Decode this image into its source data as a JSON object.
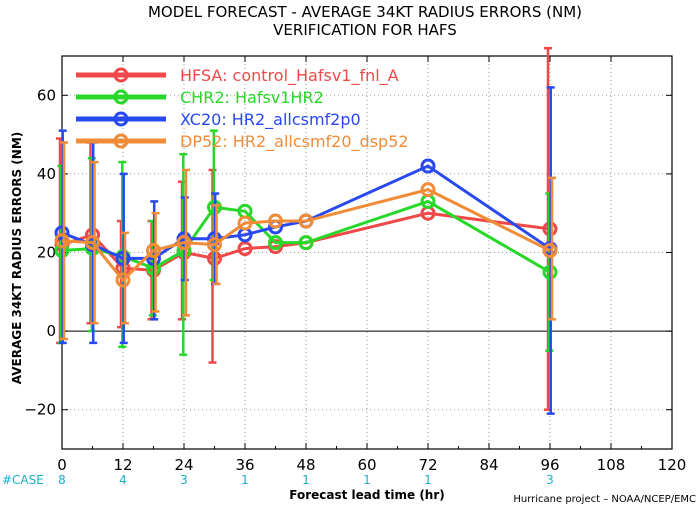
{
  "chart_data": {
    "type": "line",
    "title": "MODEL FORECAST - AVERAGE 34KT RADIUS ERRORS (NM)",
    "subtitle": "VERIFICATION FOR HAFS",
    "xlabel": "Forecast lead time (hr)",
    "ylabel": "AVERAGE 34KT RADIUS ERRORS (NM)",
    "xlim": [
      0,
      120
    ],
    "ylim": [
      -30,
      70
    ],
    "x_ticks": [
      0,
      12,
      24,
      36,
      48,
      60,
      72,
      84,
      96,
      108,
      120
    ],
    "y_ticks": [
      -20,
      0,
      20,
      40,
      60
    ],
    "grid": true,
    "legend_position": "top-left",
    "zero_line": true,
    "case_label": "#CASE",
    "case_counts": [
      {
        "x": 0,
        "n": "8"
      },
      {
        "x": 12,
        "n": "4"
      },
      {
        "x": 24,
        "n": "3"
      },
      {
        "x": 36,
        "n": "1"
      },
      {
        "x": 48,
        "n": "1"
      },
      {
        "x": 60,
        "n": "1"
      },
      {
        "x": 72,
        "n": "1"
      },
      {
        "x": 96,
        "n": "3"
      }
    ],
    "credit": "Hurricane project – NOAA/NCEP/EMC",
    "series": [
      {
        "id": "HFSA",
        "label": "HFSA: control_Hafsv1_fnl_A",
        "color": "#f04848",
        "x": [
          0,
          6,
          12,
          18,
          24,
          30,
          36,
          42,
          48,
          72,
          96
        ],
        "y": [
          22,
          24.5,
          16,
          15.5,
          20,
          18.5,
          21,
          21.5,
          22.5,
          30,
          26
        ],
        "err_low": [
          -3,
          2,
          1,
          3,
          3,
          -8,
          null,
          null,
          null,
          null,
          -20
        ],
        "err_high": [
          49,
          48,
          28,
          28,
          38,
          41,
          null,
          null,
          null,
          null,
          72
        ]
      },
      {
        "id": "CHR2",
        "label": "CHR2: Hafsv1HR2",
        "color": "#28d828",
        "x": [
          0,
          6,
          12,
          18,
          24,
          30,
          36,
          42,
          48,
          72,
          96
        ],
        "y": [
          20.5,
          21,
          19,
          16,
          20.5,
          31.5,
          30.5,
          22.5,
          22.5,
          33,
          15
        ],
        "err_low": [
          -3,
          0,
          -4,
          4,
          -6,
          13,
          null,
          null,
          null,
          null,
          -5
        ],
        "err_high": [
          42,
          44,
          43,
          28,
          45,
          51,
          null,
          null,
          null,
          null,
          35
        ]
      },
      {
        "id": "XC20",
        "label": "XC20: HR2_allcsmf2p0",
        "color": "#2848f0",
        "x": [
          0,
          6,
          12,
          18,
          24,
          30,
          36,
          42,
          48,
          72,
          96
        ],
        "y": [
          25,
          22,
          18.5,
          18.5,
          23.5,
          23.5,
          24.5,
          26.5,
          28,
          42,
          21
        ],
        "err_low": [
          -3,
          -3,
          -3,
          3,
          13,
          12,
          null,
          null,
          null,
          null,
          -21
        ],
        "err_high": [
          51,
          48,
          40,
          33,
          34,
          35,
          null,
          null,
          null,
          null,
          62
        ]
      },
      {
        "id": "DP52",
        "label": "DP52: HR2_allcsmf20_dsp52",
        "color": "#f08c38",
        "x": [
          0,
          6,
          12,
          18,
          24,
          30,
          36,
          42,
          48,
          72,
          96
        ],
        "y": [
          23,
          22.5,
          13,
          20.5,
          22.5,
          22,
          27.5,
          28,
          28,
          36,
          20.5
        ],
        "err_low": [
          -2,
          2,
          2,
          5,
          4,
          12,
          null,
          null,
          null,
          null,
          3
        ],
        "err_high": [
          48,
          43,
          25,
          30,
          41,
          32,
          null,
          null,
          null,
          null,
          39
        ]
      }
    ]
  }
}
